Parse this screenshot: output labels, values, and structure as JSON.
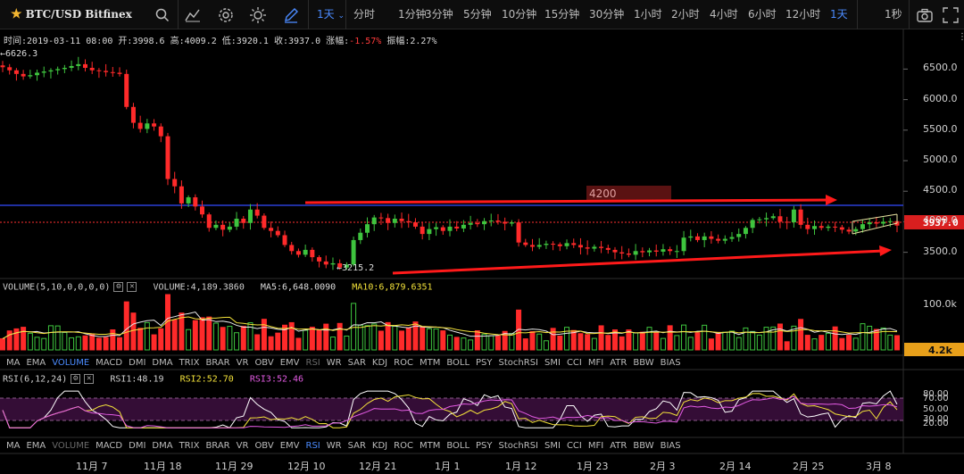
{
  "toolbar": {
    "symbol": "BTC/USD Bitfinex",
    "range_label": "1天",
    "intervals": [
      "分时",
      "1分钟",
      "3分钟",
      "5分钟",
      "10分钟",
      "15分钟",
      "30分钟",
      "1小时",
      "2小时",
      "4小时",
      "6小时",
      "12小时",
      "1天"
    ],
    "active_interval": "1天",
    "speed_label": "1秒",
    "icons": [
      "search-icon",
      "indicator-icon",
      "settings-icon",
      "theme-icon",
      "draw-icon",
      "camera-icon",
      "fullscreen-icon"
    ]
  },
  "info_bar": {
    "time_label": "时间:",
    "time": "2019-03-11 08:00",
    "open_label": "开:",
    "open": "3998.6",
    "high_label": "高:",
    "high": "4009.2",
    "low_label": "低:",
    "low": "3920.1",
    "close_label": "收:",
    "close": "3937.0",
    "change_label": "涨幅:",
    "change": "-1.57%",
    "amplitude_label": "振幅:",
    "amplitude": "2.27%"
  },
  "price_axis": [
    "6500.0",
    "6000.0",
    "5500.0",
    "5000.0",
    "4500.0",
    "4000.0",
    "3500.0"
  ],
  "current_price": "3937.0",
  "high_marker": "6626.3",
  "low_marker": "3215.2",
  "annotation_box": "4200",
  "volume": {
    "title": "VOLUME(5,10,0,0,0,0)",
    "value_label": "VOLUME:4,189.3860",
    "ma5": "MA5:6,648.0090",
    "ma10": "MA10:6,879.6351",
    "axis_label": "100.0k",
    "current_badge": "4.2k"
  },
  "rsi": {
    "title": "RSI(6,12,24)",
    "rsi1": "RSI1:48.19",
    "rsi2": "RSI2:52.70",
    "rsi3": "RSI3:52.46",
    "axis": [
      "80.00",
      "70.00",
      "50.00",
      "30.00",
      "20.00"
    ]
  },
  "indicator_tabs": [
    "MA",
    "EMA",
    "VOLUME",
    "MACD",
    "DMI",
    "DMA",
    "TRIX",
    "BRAR",
    "VR",
    "OBV",
    "EMV",
    "RSI",
    "WR",
    "SAR",
    "KDJ",
    "ROC",
    "MTM",
    "BOLL",
    "PSY",
    "StochRSI",
    "SMI",
    "CCI",
    "MFI",
    "ATR",
    "BBW",
    "BIAS"
  ],
  "dates": [
    "11月 7",
    "11月 18",
    "11月 29",
    "12月 10",
    "12月 21",
    "1月 1",
    "1月 12",
    "1月 23",
    "2月 3",
    "2月 14",
    "2月 25",
    "3月 8"
  ],
  "colors": {
    "up": "#3ec43e",
    "down": "#ff2a2a",
    "accent": "#4b8bff",
    "ma10": "#f3e23a",
    "rsi_fill": "#3d0f40"
  },
  "chart_data": {
    "type": "candlestick",
    "ylim": [
      3100,
      6900
    ],
    "closes": [
      6530,
      6480,
      6420,
      6380,
      6400,
      6440,
      6460,
      6480,
      6500,
      6520,
      6550,
      6580,
      6520,
      6480,
      6470,
      6450,
      6440,
      6420,
      5880,
      5620,
      5520,
      5610,
      5560,
      5400,
      4700,
      4580,
      4300,
      4400,
      4250,
      4120,
      3900,
      3950,
      3870,
      3920,
      4050,
      3980,
      4200,
      4100,
      3900,
      3850,
      3780,
      3620,
      3520,
      3460,
      3540,
      3420,
      3350,
      3300,
      3320,
      3250,
      3300,
      3700,
      3820,
      3960,
      4070,
      4060,
      3980,
      4050,
      4010,
      3990,
      3920,
      3800,
      3880,
      3910,
      3850,
      3920,
      3890,
      3950,
      3980,
      3960,
      4010,
      4020,
      4000,
      3970,
      3990,
      3660,
      3620,
      3590,
      3620,
      3640,
      3630,
      3600,
      3650,
      3620,
      3580,
      3560,
      3590,
      3570,
      3540,
      3500,
      3480,
      3460,
      3520,
      3500,
      3530,
      3510,
      3550,
      3520,
      3520,
      3740,
      3760,
      3700,
      3760,
      3720,
      3690,
      3720,
      3750,
      3800,
      3900,
      4030,
      4040,
      4060,
      4090,
      4000,
      3990,
      4200,
      3950,
      3880,
      3930,
      3900,
      3920,
      3910,
      3870,
      3840,
      3880,
      3960,
      3990,
      3970,
      4000,
      4010,
      3937
    ]
  }
}
